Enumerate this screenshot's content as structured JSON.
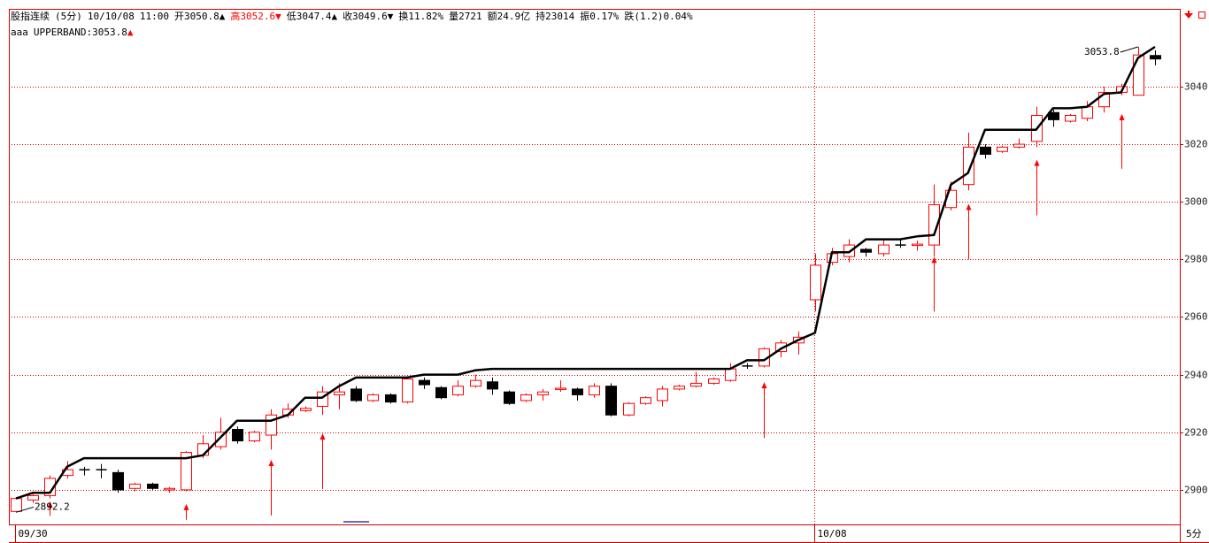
{
  "chart_data": {
    "type": "candlestick",
    "info_line": [
      {
        "text": "股指连续",
        "color": "#000000"
      },
      {
        "text": "(5分)",
        "color": "#000000"
      },
      {
        "text": "10/10/08",
        "color": "#000000"
      },
      {
        "text": "11:00",
        "color": "#000000"
      },
      {
        "text": "开3050.8▲",
        "color": "#000000"
      },
      {
        "text": "高3052.6▼",
        "color": "#ff0000"
      },
      {
        "text": "低3047.4▲",
        "color": "#000000"
      },
      {
        "text": "收3049.6▼",
        "color": "#000000"
      },
      {
        "text": "换11.82%",
        "color": "#000000"
      },
      {
        "text": "量2721",
        "color": "#000000"
      },
      {
        "text": "额24.9亿",
        "color": "#000000"
      },
      {
        "text": "持23014",
        "color": "#000000"
      },
      {
        "text": "振0.17%",
        "color": "#000000"
      },
      {
        "text": "跌(1.2)0.04%",
        "color": "#000000"
      }
    ],
    "indicator_line": [
      {
        "text": "aaa",
        "color": "#000000"
      },
      {
        "text": "UPPERBAND:3053.8",
        "color": "#000000"
      },
      {
        "text": "▲",
        "color": "#ff0000"
      }
    ],
    "categories": [
      "09/30",
      null,
      null,
      null,
      null,
      null,
      null,
      null,
      null,
      null,
      null,
      null,
      null,
      null,
      null,
      null,
      null,
      null,
      null,
      null,
      null,
      null,
      null,
      null,
      null,
      null,
      null,
      null,
      null,
      null,
      null,
      null,
      null,
      null,
      null,
      null,
      null,
      null,
      null,
      null,
      null,
      null,
      null,
      null,
      null,
      null,
      null,
      "10/08",
      null,
      null,
      null,
      null,
      null,
      null,
      null,
      null,
      null,
      null,
      null,
      null,
      null,
      null,
      null,
      null,
      null,
      null,
      null,
      null
    ],
    "open": [
      2892.5,
      2896.5,
      2898,
      2905,
      2907,
      2907,
      2906,
      2900.5,
      2902,
      2900,
      2900,
      2912,
      2915,
      2921,
      2917,
      2919,
      2926,
      2927.5,
      2929,
      2933,
      2935,
      2931,
      2933,
      2930.5,
      2938,
      2935.5,
      2933,
      2936,
      2937.5,
      2934,
      2931,
      2933,
      2935,
      2935,
      2933,
      2936,
      2926,
      2930,
      2931,
      2935,
      2936,
      2937,
      2938,
      2943,
      2943,
      2948,
      2951,
      2966,
      2979,
      2981,
      2983.5,
      2982,
      2985,
      2985,
      2985,
      2998,
      3006,
      3019,
      3017.5,
      3019,
      3021,
      3031,
      3028,
      3029,
      3033,
      3038,
      3037,
      3050.8
    ],
    "high": [
      2897.5,
      2898.5,
      2905,
      2910,
      2908,
      2909,
      2907,
      2902.5,
      2902.5,
      2901,
      2913.5,
      2919,
      2925,
      2922,
      2920.5,
      2928,
      2930,
      2929,
      2936,
      2937,
      2936,
      2933.5,
      2933.5,
      2939,
      2939,
      2936,
      2938,
      2940,
      2939,
      2934.5,
      2933.5,
      2935,
      2938,
      2935.5,
      2937,
      2937,
      2930.5,
      2932.5,
      2936,
      2936.5,
      2941,
      2939,
      2944,
      2944,
      2949.5,
      2952,
      2955,
      2982,
      2984,
      2987,
      2984,
      2987,
      2987,
      2986.5,
      3006,
      3007,
      3024,
      3020,
      3019.5,
      3022,
      3033,
      3032,
      3030.5,
      3035,
      3040,
      3041,
      3053.8,
      3052.6
    ],
    "low": [
      2892.2,
      2895.5,
      2897,
      2904,
      2905,
      2904,
      2899,
      2899.5,
      2900,
      2899,
      2899.5,
      2911,
      2914,
      2916,
      2916.5,
      2914,
      2925,
      2927,
      2926,
      2928,
      2930.5,
      2930.5,
      2930,
      2930,
      2935,
      2931.5,
      2932.5,
      2935.5,
      2933,
      2929.5,
      2930.5,
      2931,
      2934,
      2931,
      2932,
      2925.5,
      2925.5,
      2929.5,
      2929,
      2934.5,
      2935.5,
      2936.5,
      2937.5,
      2942,
      2942.5,
      2946,
      2947,
      2962,
      2978,
      2979,
      2981,
      2981,
      2984,
      2983,
      2981,
      2997,
      3004,
      3015,
      3017,
      3018.5,
      3019,
      3026,
      3027.5,
      3028,
      3031,
      3037,
      3037,
      3047.4
    ],
    "close": [
      2897,
      2898,
      2904,
      2907,
      2907,
      2907,
      2900,
      2902,
      2900.5,
      2900.5,
      2913,
      2916,
      2920,
      2917,
      2920,
      2926,
      2928,
      2928.3,
      2934,
      2934,
      2931,
      2933,
      2930.5,
      2938.5,
      2936.5,
      2932,
      2936,
      2938,
      2935,
      2930,
      2933,
      2934,
      2935.3,
      2933,
      2936,
      2926,
      2930,
      2932,
      2935,
      2936,
      2937,
      2938.5,
      2942,
      2943,
      2949,
      2951,
      2953,
      2978,
      2982,
      2985,
      2982.5,
      2985,
      2985,
      2985.3,
      2999,
      3004,
      3019,
      3016.5,
      3019,
      3020,
      3030,
      3028.5,
      3030,
      3033,
      3038,
      3040,
      3051,
      3049.6
    ],
    "up_color": "#ff0000",
    "down_color": "#000000",
    "series": [
      {
        "name": "UPPERBAND",
        "color": "#000000",
        "values": [
          2897,
          2899,
          2899,
          2908,
          2911,
          2911,
          2911,
          2911,
          2911,
          2911,
          2911,
          2912,
          2918,
          2924,
          2924,
          2924,
          2926,
          2932,
          2932,
          2936,
          2939,
          2939,
          2939,
          2939,
          2940,
          2940,
          2940,
          2941.5,
          2942,
          2942,
          2942,
          2942,
          2942,
          2942,
          2942,
          2942,
          2942,
          2942,
          2942,
          2942,
          2942,
          2942,
          2942,
          2945,
          2945,
          2949,
          2952,
          2954.5,
          2982.5,
          2982.5,
          2987,
          2987,
          2987,
          2988,
          2988.5,
          3006,
          3010,
          3025,
          3025,
          3025,
          3025,
          3032.5,
          3032.5,
          3033,
          3037.5,
          3038,
          3050,
          3053.8
        ]
      }
    ],
    "signals": [
      {
        "index": 2,
        "from": 2891,
        "to": 2896
      },
      {
        "index": 10,
        "from": 2889.6,
        "to": 2895.1
      },
      {
        "index": 15,
        "from": 2891.1,
        "to": 2910.4
      },
      {
        "index": 18,
        "from": 2900.3,
        "to": 2919.6
      },
      {
        "index": 44,
        "from": 2918,
        "to": 2937.4
      },
      {
        "index": 54,
        "from": 2961.9,
        "to": 2980.9
      },
      {
        "index": 56,
        "from": 2980,
        "to": 2999.3
      },
      {
        "index": 60,
        "from": 2995.3,
        "to": 3014.6
      },
      {
        "index": 65,
        "from": 3011.5,
        "to": 3030.5
      }
    ],
    "signal_color": "#ff0000",
    "low_label": "2892.2",
    "high_label": "3053.8",
    "period_label": "5分",
    "ylim": [
      2888,
      3067
    ],
    "yticks": [
      2900,
      2920,
      2940,
      2960,
      2980,
      3000,
      3020,
      3040
    ],
    "grid": true,
    "grid_color": "#cc0000"
  }
}
